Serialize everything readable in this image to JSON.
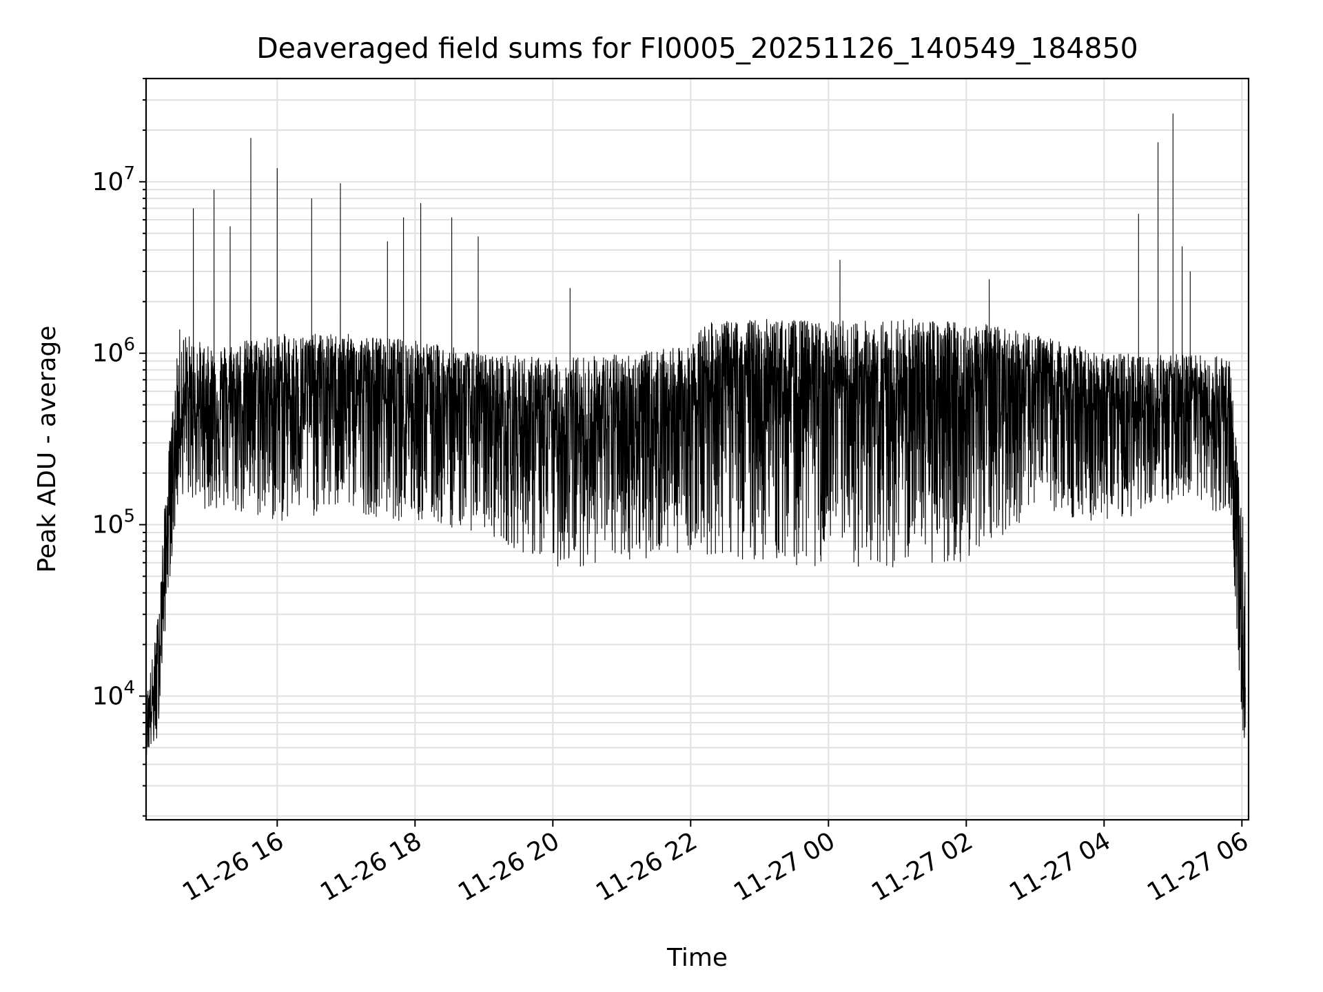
{
  "chart_data": {
    "type": "line",
    "title": "Deaveraged field sums for FI0005_20251126_140549_184850",
    "xlabel": "Time",
    "ylabel": "Peak ADU - average",
    "x_axis": {
      "type": "datetime",
      "range": [
        "2025-11-26T14:05:49",
        "2025-11-27T06:05:49"
      ],
      "ticks": [
        "2025-11-26T16:00",
        "2025-11-26T18:00",
        "2025-11-26T20:00",
        "2025-11-26T22:00",
        "2025-11-27T00:00",
        "2025-11-27T02:00",
        "2025-11-27T04:00",
        "2025-11-27T06:00"
      ],
      "tick_labels": [
        "11-26 16",
        "11-26 18",
        "11-26 20",
        "11-26 22",
        "11-27 00",
        "11-27 02",
        "11-27 04",
        "11-27 06"
      ]
    },
    "y_axis": {
      "scale": "log",
      "ylim": [
        1900,
        40000000
      ],
      "ticks": [
        10000,
        100000,
        1000000,
        10000000
      ],
      "tick_base": "10",
      "tick_exponents": [
        "4",
        "5",
        "6",
        "7"
      ]
    },
    "grid": true,
    "line_color": "#000000",
    "series": [
      {
        "name": "",
        "description": "dense noisy trace; envelope and notable spikes estimated from the plot",
        "envelope": [
          {
            "time": "2025-11-26T14:06",
            "low": 4500,
            "median": 7000,
            "high": 10000
          },
          {
            "time": "2025-11-26T14:15",
            "low": 5000,
            "median": 10000,
            "high": 25000
          },
          {
            "time": "2025-11-26T14:25",
            "low": 40000,
            "median": 100000,
            "high": 250000
          },
          {
            "time": "2025-11-26T14:35",
            "low": 150000,
            "median": 450000,
            "high": 1400000
          },
          {
            "time": "2025-11-26T15:00",
            "low": 120000,
            "median": 500000,
            "high": 1100000
          },
          {
            "time": "2025-11-26T16:00",
            "low": 100000,
            "median": 550000,
            "high": 1300000
          },
          {
            "time": "2025-11-26T17:00",
            "low": 120000,
            "median": 650000,
            "high": 1300000
          },
          {
            "time": "2025-11-26T18:00",
            "low": 100000,
            "median": 550000,
            "high": 1200000
          },
          {
            "time": "2025-11-26T19:00",
            "low": 90000,
            "median": 450000,
            "high": 1000000
          },
          {
            "time": "2025-11-26T20:00",
            "low": 55000,
            "median": 350000,
            "high": 950000
          },
          {
            "time": "2025-11-26T21:00",
            "low": 60000,
            "median": 380000,
            "high": 1000000
          },
          {
            "time": "2025-11-26T22:00",
            "low": 70000,
            "median": 450000,
            "high": 1100000
          },
          {
            "time": "2025-11-26T22:10",
            "low": 65000,
            "median": 700000,
            "high": 1500000
          },
          {
            "time": "2025-11-26T23:00",
            "low": 60000,
            "median": 650000,
            "high": 1600000
          },
          {
            "time": "2025-11-27T00:00",
            "low": 55000,
            "median": 550000,
            "high": 1550000
          },
          {
            "time": "2025-11-27T01:00",
            "low": 55000,
            "median": 550000,
            "high": 1600000
          },
          {
            "time": "2025-11-27T02:00",
            "low": 60000,
            "median": 600000,
            "high": 1550000
          },
          {
            "time": "2025-11-27T03:00",
            "low": 120000,
            "median": 600000,
            "high": 1300000
          },
          {
            "time": "2025-11-27T04:00",
            "low": 100000,
            "median": 500000,
            "high": 1000000
          },
          {
            "time": "2025-11-27T05:00",
            "low": 120000,
            "median": 450000,
            "high": 1000000
          },
          {
            "time": "2025-11-27T05:50",
            "low": 110000,
            "median": 400000,
            "high": 950000
          },
          {
            "time": "2025-11-27T05:57",
            "low": 15000,
            "median": 60000,
            "high": 200000
          },
          {
            "time": "2025-11-27T06:03",
            "low": 4000,
            "median": 9000,
            "high": 90000
          }
        ],
        "spikes": [
          {
            "time": "2025-11-26T14:47",
            "value": 7000000
          },
          {
            "time": "2025-11-26T15:05",
            "value": 9000000
          },
          {
            "time": "2025-11-26T15:19",
            "value": 5500000
          },
          {
            "time": "2025-11-26T15:37",
            "value": 18000000
          },
          {
            "time": "2025-11-26T16:00",
            "value": 12000000
          },
          {
            "time": "2025-11-26T16:30",
            "value": 8000000
          },
          {
            "time": "2025-11-26T16:55",
            "value": 9800000
          },
          {
            "time": "2025-11-26T17:36",
            "value": 4500000
          },
          {
            "time": "2025-11-26T17:50",
            "value": 6200000
          },
          {
            "time": "2025-11-26T18:05",
            "value": 7500000
          },
          {
            "time": "2025-11-26T18:32",
            "value": 6200000
          },
          {
            "time": "2025-11-26T18:55",
            "value": 4800000
          },
          {
            "time": "2025-11-26T20:15",
            "value": 2400000
          },
          {
            "time": "2025-11-27T00:10",
            "value": 3500000
          },
          {
            "time": "2025-11-27T02:20",
            "value": 2700000
          },
          {
            "time": "2025-11-27T04:30",
            "value": 6500000
          },
          {
            "time": "2025-11-27T04:47",
            "value": 17000000
          },
          {
            "time": "2025-11-27T05:00",
            "value": 25000000
          },
          {
            "time": "2025-11-27T05:08",
            "value": 4200000
          },
          {
            "time": "2025-11-27T05:15",
            "value": 3000000
          }
        ]
      }
    ]
  }
}
